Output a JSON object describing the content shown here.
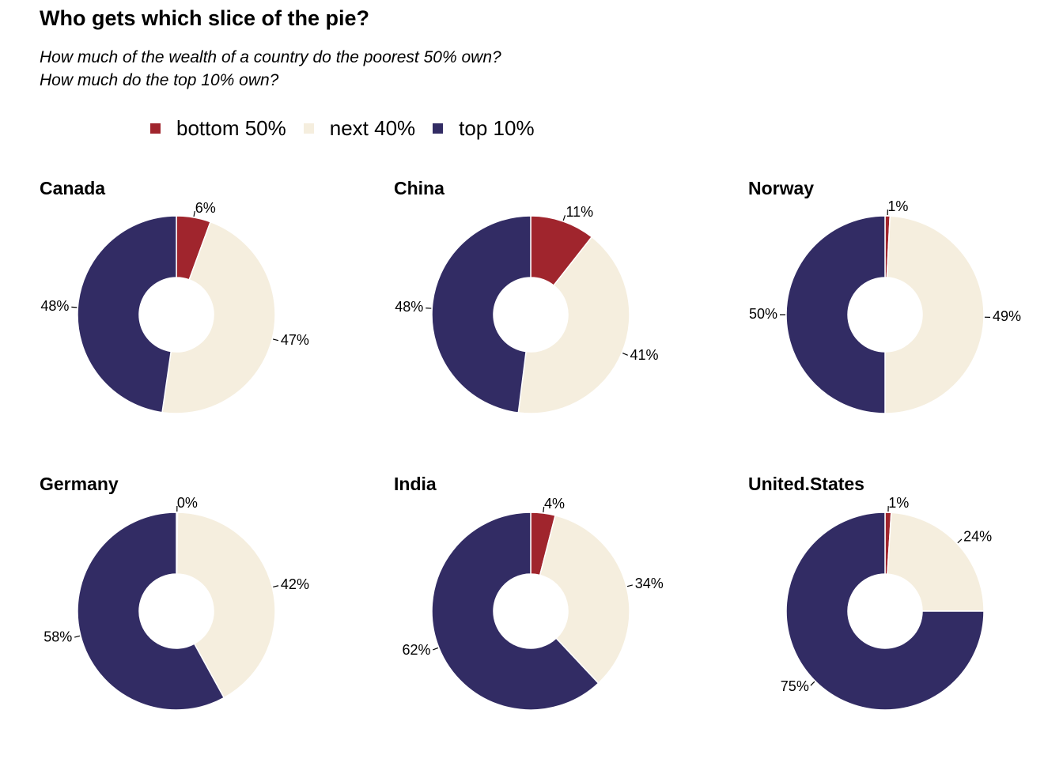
{
  "title": "Who gets which slice of the pie?",
  "subtitle_lines": [
    "How much of the wealth of a country do the poorest 50% own?",
    "How much do the top 10% own?"
  ],
  "legend": [
    {
      "label": "bottom 50%",
      "color": "#A0252D"
    },
    {
      "label": "next 40%",
      "color": "#F5EEDE"
    },
    {
      "label": "top 10%",
      "color": "#322C64"
    }
  ],
  "chart_data": {
    "type": "pie",
    "style": "donut",
    "categories": [
      "bottom 50%",
      "next 40%",
      "top 10%"
    ],
    "colors": [
      "#A0252D",
      "#F5EEDE",
      "#322C64"
    ],
    "facets": [
      {
        "name": "Canada",
        "values": [
          5.6,
          46.7,
          47.7
        ],
        "labels": [
          "6%",
          "47%",
          "48%"
        ]
      },
      {
        "name": "China",
        "values": [
          10.6,
          41.4,
          48.0
        ],
        "labels": [
          "11%",
          "41%",
          "48%"
        ]
      },
      {
        "name": "Norway",
        "values": [
          0.8,
          49.2,
          50.0
        ],
        "labels": [
          "1%",
          "49%",
          "50%"
        ]
      },
      {
        "name": "Germany",
        "values": [
          0.2,
          41.8,
          58.0
        ],
        "labels": [
          "0%",
          "42%",
          "58%"
        ]
      },
      {
        "name": "India",
        "values": [
          4.0,
          34.0,
          62.0
        ],
        "labels": [
          "4%",
          "34%",
          "62%"
        ]
      },
      {
        "name": "United.States",
        "values": [
          1.0,
          24.0,
          75.0
        ],
        "labels": [
          "1%",
          "24%",
          "75%"
        ]
      }
    ]
  }
}
